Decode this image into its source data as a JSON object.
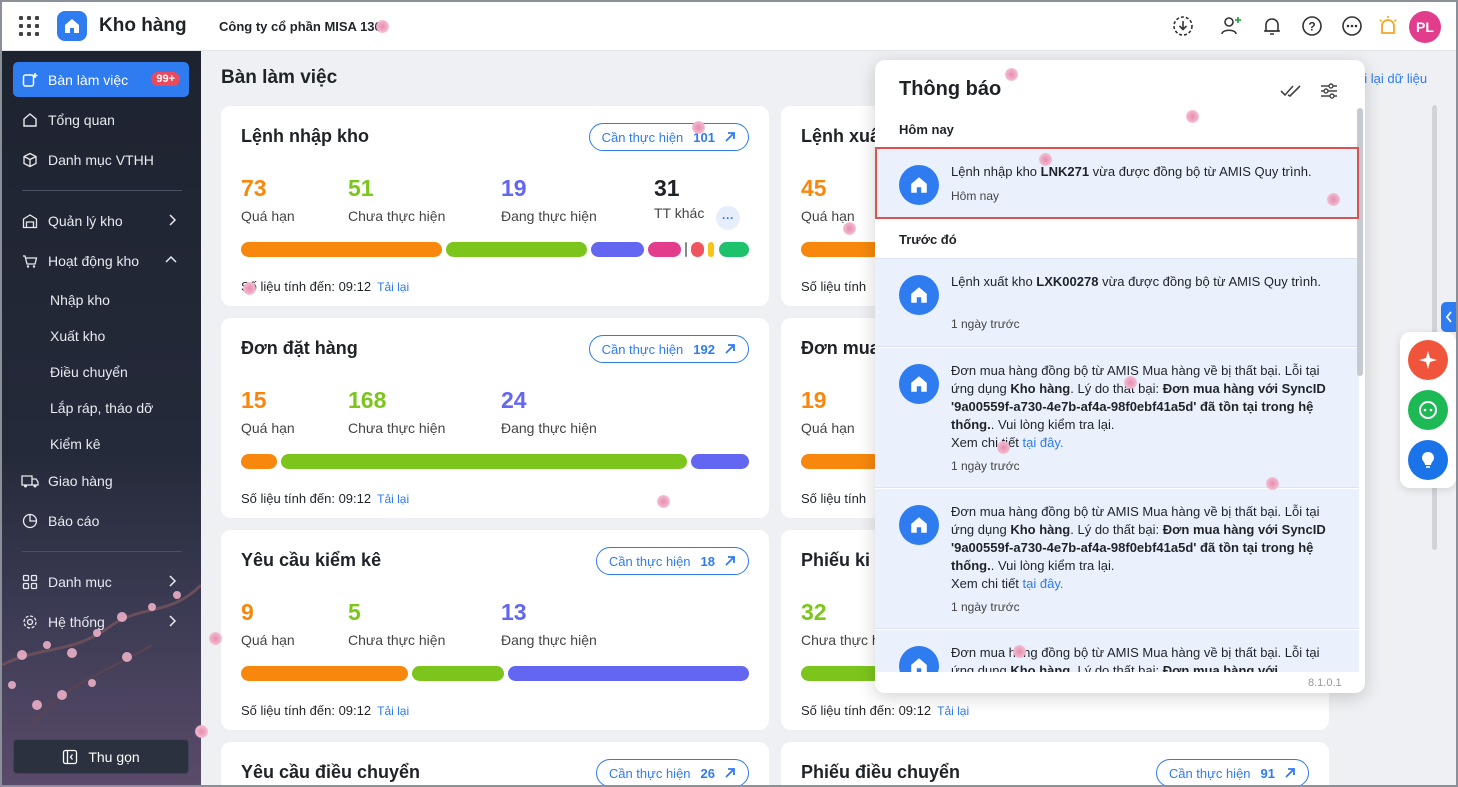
{
  "topbar": {
    "app_name": "Kho hàng",
    "company": "Công ty cổ phần MISA 136",
    "avatar_initials": "PL"
  },
  "sidebar": {
    "items": [
      {
        "label": "Bàn làm việc",
        "badge": "99+"
      },
      {
        "label": "Tổng quan"
      },
      {
        "label": "Danh mục VTHH"
      },
      {
        "label": "Quản lý kho"
      },
      {
        "label": "Hoạt động kho"
      },
      {
        "label": "Giao hàng"
      },
      {
        "label": "Báo cáo"
      },
      {
        "label": "Danh mục"
      },
      {
        "label": "Hệ thống"
      }
    ],
    "sub_items": [
      "Nhập kho",
      "Xuất kho",
      "Điều chuyển",
      "Lắp ráp, tháo dỡ",
      "Kiểm kê"
    ],
    "collapse_label": "Thu gọn"
  },
  "main": {
    "title": "Bàn làm việc",
    "reload_link": "ải lại dữ liệu",
    "todo_label": "Cần thực hiện",
    "reload_label": "Tải lại",
    "as_of_label": "Số liệu tính đến: 09:12",
    "cards": [
      {
        "title": "Lệnh nhập kho",
        "todo_count": "101",
        "stats": [
          {
            "n": "73",
            "l": "Quá hạn"
          },
          {
            "n": "51",
            "l": "Chưa thực hiện"
          },
          {
            "n": "19",
            "l": "Đang thực hiện"
          },
          {
            "n": "31",
            "l": "TT khác"
          }
        ],
        "more": "···"
      },
      {
        "title": "Đơn đặt hàng",
        "todo_count": "192",
        "stats": [
          {
            "n": "15",
            "l": "Quá hạn"
          },
          {
            "n": "168",
            "l": "Chưa thực hiện"
          },
          {
            "n": "24",
            "l": "Đang thực hiện"
          }
        ]
      },
      {
        "title": "Yêu cầu kiểm kê",
        "todo_count": "18",
        "stats": [
          {
            "n": "9",
            "l": "Quá hạn"
          },
          {
            "n": "5",
            "l": "Chưa thực hiện"
          },
          {
            "n": "13",
            "l": "Đang thực hiện"
          }
        ]
      },
      {
        "title": "Yêu cầu điều chuyển",
        "todo_count": "26"
      }
    ],
    "right_cards": [
      {
        "title": "Lệnh xuấ",
        "n": "45",
        "l": "Quá hạn"
      },
      {
        "title": "Đơn mua",
        "n": "19",
        "l": "Quá hạn"
      },
      {
        "title": "Phiếu ki",
        "n": "32",
        "l": "Chưa thực h"
      },
      {
        "title": "Phiếu điều chuyển",
        "todo_count": "91"
      }
    ],
    "right_footers": [
      "Số liệu tính",
      "Số liệu tính",
      "Số liệu tính đến: 09:12"
    ]
  },
  "notifications": {
    "title": "Thông báo",
    "today_label": "Hôm nay",
    "earlier_label": "Trước đó",
    "items": [
      {
        "pre": "Lệnh nhập kho ",
        "bold": "LNK271",
        "post": " vừa được đồng bộ từ AMIS Quy trình.",
        "time": "Hôm nay"
      },
      {
        "pre": "Lệnh xuất kho ",
        "bold": "LXK00278",
        "post": " vừa được đồng bộ từ AMIS Quy trình.",
        "time": "1 ngày trước"
      },
      {
        "line1": "Đơn mua hàng đồng bộ từ AMIS Mua hàng về bị thất bại. Lỗi tại ứng dụng ",
        "bold1": "Kho hàng",
        "mid": ". Lý do thất bại: ",
        "bold2": "Đơn mua hàng với SyncID '9a00559f-a730-4e7b-af4a-98f0ebf41a5d' đã tồn tại trong hệ thống.",
        "post": ". Vui lòng kiểm tra lại.",
        "detail": "Xem chi tiết ",
        "link": "tại đây.",
        "time": "1 ngày trước"
      },
      {
        "line1": "Đơn mua hàng đồng bộ từ AMIS Mua hàng về bị thất bại. Lỗi tại ứng dụng ",
        "bold1": "Kho hàng",
        "mid": ". Lý do thất bại: ",
        "bold2": "Đơn mua hàng với SyncID '9a00559f-a730-4e7b-af4a-98f0ebf41a5d' đã tồn tại trong hệ thống.",
        "post": ". Vui lòng kiểm tra lại.",
        "detail": "Xem chi tiết ",
        "link": "tại đây.",
        "time": "1 ngày trước"
      },
      {
        "line1": "Đơn mua hàng đồng bộ từ AMIS Mua hàng về bị thất bại. Lỗi tại ứng dụng ",
        "bold1": "Kho hàng",
        "mid": ". Lý do thất bại: ",
        "bold2": "Đơn mua hàng với"
      }
    ],
    "version": "8.1.0.1"
  },
  "colors": {
    "accent": "#2f7bf0",
    "overdue": "#f7880d",
    "not_started": "#7cc51c",
    "in_progress": "#6266f1"
  }
}
